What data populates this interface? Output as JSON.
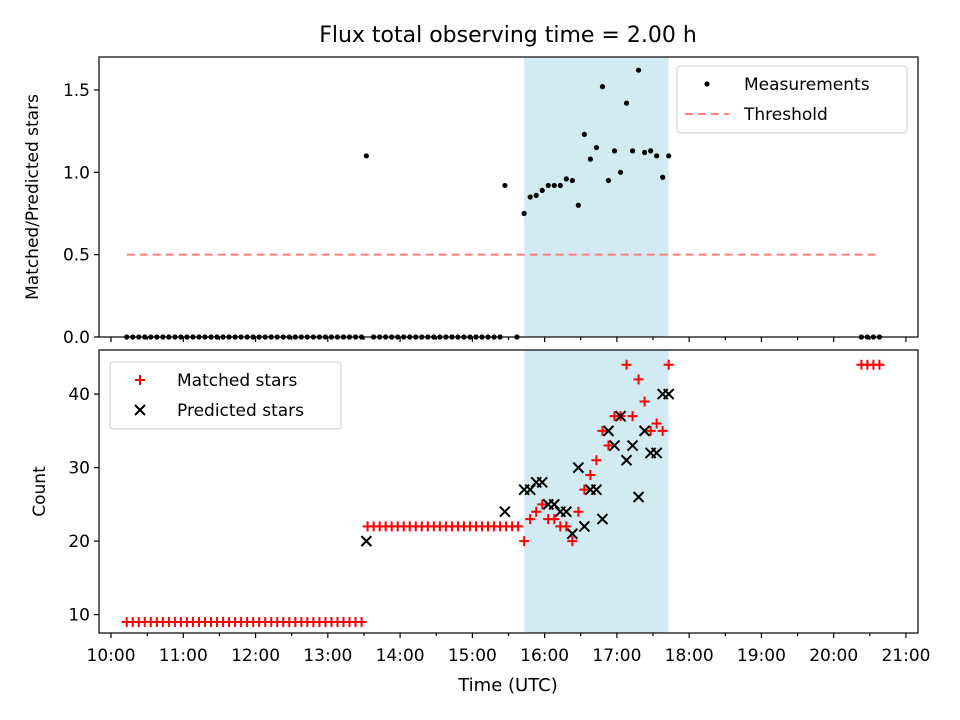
{
  "title": "Flux total observing time = 2.00 h",
  "xlabel": "Time (UTC)",
  "x_ticks": [
    "10:00",
    "11:00",
    "12:00",
    "13:00",
    "14:00",
    "15:00",
    "16:00",
    "17:00",
    "18:00",
    "19:00",
    "20:00",
    "21:00"
  ],
  "colors": {
    "shade": "#add8e6",
    "threshold": "#ff7f7f",
    "matched": "#ff0000",
    "predicted": "#000000",
    "measurements": "#000000"
  },
  "chart_data": [
    {
      "type": "scatter",
      "ylabel": "Matched/Predicted stars",
      "xlim": [
        "09:50",
        "21:10"
      ],
      "ylim": [
        0,
        1.7
      ],
      "y_ticks": [
        "0.0",
        "0.5",
        "1.0",
        "1.5"
      ],
      "shaded_span": [
        "15:43",
        "17:43"
      ],
      "legend_position": "upper right",
      "series": [
        {
          "name": "Measurements",
          "marker": "dot",
          "points": [
            [
              "10:13",
              0
            ],
            [
              "10:18",
              0
            ],
            [
              "10:23",
              0
            ],
            [
              "10:28",
              0
            ],
            [
              "10:33",
              0
            ],
            [
              "10:38",
              0
            ],
            [
              "10:43",
              0
            ],
            [
              "10:48",
              0
            ],
            [
              "10:53",
              0
            ],
            [
              "10:58",
              0
            ],
            [
              "11:03",
              0
            ],
            [
              "11:08",
              0
            ],
            [
              "11:13",
              0
            ],
            [
              "11:18",
              0
            ],
            [
              "11:23",
              0
            ],
            [
              "11:28",
              0
            ],
            [
              "11:33",
              0
            ],
            [
              "11:38",
              0
            ],
            [
              "11:43",
              0
            ],
            [
              "11:48",
              0
            ],
            [
              "11:53",
              0
            ],
            [
              "11:58",
              0
            ],
            [
              "12:03",
              0
            ],
            [
              "12:08",
              0
            ],
            [
              "12:13",
              0
            ],
            [
              "12:18",
              0
            ],
            [
              "12:23",
              0
            ],
            [
              "12:28",
              0
            ],
            [
              "12:33",
              0
            ],
            [
              "12:38",
              0
            ],
            [
              "12:43",
              0
            ],
            [
              "12:48",
              0
            ],
            [
              "12:53",
              0
            ],
            [
              "12:58",
              0
            ],
            [
              "13:03",
              0
            ],
            [
              "13:08",
              0
            ],
            [
              "13:13",
              0
            ],
            [
              "13:18",
              0
            ],
            [
              "13:23",
              0
            ],
            [
              "13:28",
              0
            ],
            [
              "13:32",
              1.1
            ],
            [
              "13:38",
              0
            ],
            [
              "13:43",
              0
            ],
            [
              "13:48",
              0
            ],
            [
              "13:53",
              0
            ],
            [
              "13:58",
              0
            ],
            [
              "14:03",
              0
            ],
            [
              "14:08",
              0
            ],
            [
              "14:13",
              0
            ],
            [
              "14:18",
              0
            ],
            [
              "14:23",
              0
            ],
            [
              "14:28",
              0
            ],
            [
              "14:33",
              0
            ],
            [
              "14:38",
              0
            ],
            [
              "14:43",
              0
            ],
            [
              "14:48",
              0
            ],
            [
              "14:53",
              0
            ],
            [
              "14:58",
              0
            ],
            [
              "15:03",
              0
            ],
            [
              "15:08",
              0
            ],
            [
              "15:13",
              0
            ],
            [
              "15:18",
              0
            ],
            [
              "15:23",
              0
            ],
            [
              "15:27",
              0.92
            ],
            [
              "15:37",
              0
            ],
            [
              "15:43",
              0.75
            ],
            [
              "15:48",
              0.85
            ],
            [
              "15:53",
              0.86
            ],
            [
              "15:58",
              0.89
            ],
            [
              "16:03",
              0.92
            ],
            [
              "16:08",
              0.92
            ],
            [
              "16:13",
              0.92
            ],
            [
              "16:18",
              0.96
            ],
            [
              "16:23",
              0.95
            ],
            [
              "16:28",
              0.8
            ],
            [
              "16:33",
              1.23
            ],
            [
              "16:38",
              1.08
            ],
            [
              "16:43",
              1.15
            ],
            [
              "16:48",
              1.52
            ],
            [
              "16:53",
              0.95
            ],
            [
              "16:58",
              1.13
            ],
            [
              "17:03",
              1.0
            ],
            [
              "17:08",
              1.42
            ],
            [
              "17:13",
              1.13
            ],
            [
              "17:18",
              1.62
            ],
            [
              "17:23",
              1.12
            ],
            [
              "17:28",
              1.13
            ],
            [
              "17:33",
              1.1
            ],
            [
              "17:38",
              0.97
            ],
            [
              "17:43",
              1.1
            ],
            [
              "20:23",
              0
            ],
            [
              "20:28",
              0
            ],
            [
              "20:33",
              0
            ],
            [
              "20:38",
              0
            ]
          ]
        },
        {
          "name": "Threshold",
          "style": "dashed",
          "points": [
            [
              "10:13",
              0.5
            ],
            [
              "20:38",
              0.5
            ]
          ]
        }
      ]
    },
    {
      "type": "scatter",
      "ylabel": "Count",
      "xlim": [
        "09:50",
        "21:10"
      ],
      "ylim": [
        7.5,
        46
      ],
      "y_ticks": [
        "10",
        "20",
        "30",
        "40"
      ],
      "shaded_span": [
        "15:43",
        "17:43"
      ],
      "legend_position": "upper left",
      "series": [
        {
          "name": "Matched stars",
          "marker": "plus",
          "points": [
            [
              "10:13",
              9
            ],
            [
              "10:18",
              9
            ],
            [
              "10:23",
              9
            ],
            [
              "10:28",
              9
            ],
            [
              "10:33",
              9
            ],
            [
              "10:38",
              9
            ],
            [
              "10:43",
              9
            ],
            [
              "10:48",
              9
            ],
            [
              "10:53",
              9
            ],
            [
              "10:58",
              9
            ],
            [
              "11:03",
              9
            ],
            [
              "11:08",
              9
            ],
            [
              "11:13",
              9
            ],
            [
              "11:18",
              9
            ],
            [
              "11:23",
              9
            ],
            [
              "11:28",
              9
            ],
            [
              "11:33",
              9
            ],
            [
              "11:38",
              9
            ],
            [
              "11:43",
              9
            ],
            [
              "11:48",
              9
            ],
            [
              "11:53",
              9
            ],
            [
              "11:58",
              9
            ],
            [
              "12:03",
              9
            ],
            [
              "12:08",
              9
            ],
            [
              "12:13",
              9
            ],
            [
              "12:18",
              9
            ],
            [
              "12:23",
              9
            ],
            [
              "12:28",
              9
            ],
            [
              "12:33",
              9
            ],
            [
              "12:38",
              9
            ],
            [
              "12:43",
              9
            ],
            [
              "12:48",
              9
            ],
            [
              "12:53",
              9
            ],
            [
              "12:58",
              9
            ],
            [
              "13:03",
              9
            ],
            [
              "13:08",
              9
            ],
            [
              "13:13",
              9
            ],
            [
              "13:18",
              9
            ],
            [
              "13:23",
              9
            ],
            [
              "13:28",
              9
            ],
            [
              "13:33",
              22
            ],
            [
              "13:38",
              22
            ],
            [
              "13:43",
              22
            ],
            [
              "13:48",
              22
            ],
            [
              "13:53",
              22
            ],
            [
              "13:58",
              22
            ],
            [
              "14:03",
              22
            ],
            [
              "14:08",
              22
            ],
            [
              "14:13",
              22
            ],
            [
              "14:18",
              22
            ],
            [
              "14:23",
              22
            ],
            [
              "14:28",
              22
            ],
            [
              "14:33",
              22
            ],
            [
              "14:38",
              22
            ],
            [
              "14:43",
              22
            ],
            [
              "14:48",
              22
            ],
            [
              "14:53",
              22
            ],
            [
              "14:58",
              22
            ],
            [
              "15:03",
              22
            ],
            [
              "15:08",
              22
            ],
            [
              "15:13",
              22
            ],
            [
              "15:18",
              22
            ],
            [
              "15:23",
              22
            ],
            [
              "15:28",
              22
            ],
            [
              "15:33",
              22
            ],
            [
              "15:38",
              22
            ],
            [
              "15:43",
              20
            ],
            [
              "15:48",
              23
            ],
            [
              "15:53",
              24
            ],
            [
              "15:58",
              25
            ],
            [
              "16:03",
              23
            ],
            [
              "16:08",
              23
            ],
            [
              "16:13",
              22
            ],
            [
              "16:18",
              22
            ],
            [
              "16:23",
              20
            ],
            [
              "16:28",
              24
            ],
            [
              "16:33",
              27
            ],
            [
              "16:38",
              29
            ],
            [
              "16:43",
              31
            ],
            [
              "16:48",
              35
            ],
            [
              "16:53",
              33
            ],
            [
              "16:58",
              37
            ],
            [
              "17:03",
              37
            ],
            [
              "17:08",
              44
            ],
            [
              "17:13",
              37
            ],
            [
              "17:18",
              42
            ],
            [
              "17:23",
              39
            ],
            [
              "17:28",
              35
            ],
            [
              "17:33",
              36
            ],
            [
              "17:38",
              35
            ],
            [
              "17:43",
              44
            ],
            [
              "20:23",
              44
            ],
            [
              "20:28",
              44
            ],
            [
              "20:33",
              44
            ],
            [
              "20:38",
              44
            ]
          ]
        },
        {
          "name": "Predicted stars",
          "marker": "x",
          "points": [
            [
              "13:32",
              20
            ],
            [
              "15:27",
              24
            ],
            [
              "15:43",
              27
            ],
            [
              "15:48",
              27
            ],
            [
              "15:53",
              28
            ],
            [
              "15:58",
              28
            ],
            [
              "16:03",
              25
            ],
            [
              "16:08",
              25
            ],
            [
              "16:13",
              24
            ],
            [
              "16:18",
              24
            ],
            [
              "16:23",
              21
            ],
            [
              "16:28",
              30
            ],
            [
              "16:33",
              22
            ],
            [
              "16:38",
              27
            ],
            [
              "16:43",
              27
            ],
            [
              "16:48",
              23
            ],
            [
              "16:53",
              35
            ],
            [
              "16:58",
              33
            ],
            [
              "17:03",
              37
            ],
            [
              "17:08",
              31
            ],
            [
              "17:13",
              33
            ],
            [
              "17:18",
              26
            ],
            [
              "17:23",
              35
            ],
            [
              "17:28",
              32
            ],
            [
              "17:33",
              32
            ],
            [
              "17:38",
              40
            ],
            [
              "17:43",
              40
            ]
          ]
        }
      ]
    }
  ]
}
